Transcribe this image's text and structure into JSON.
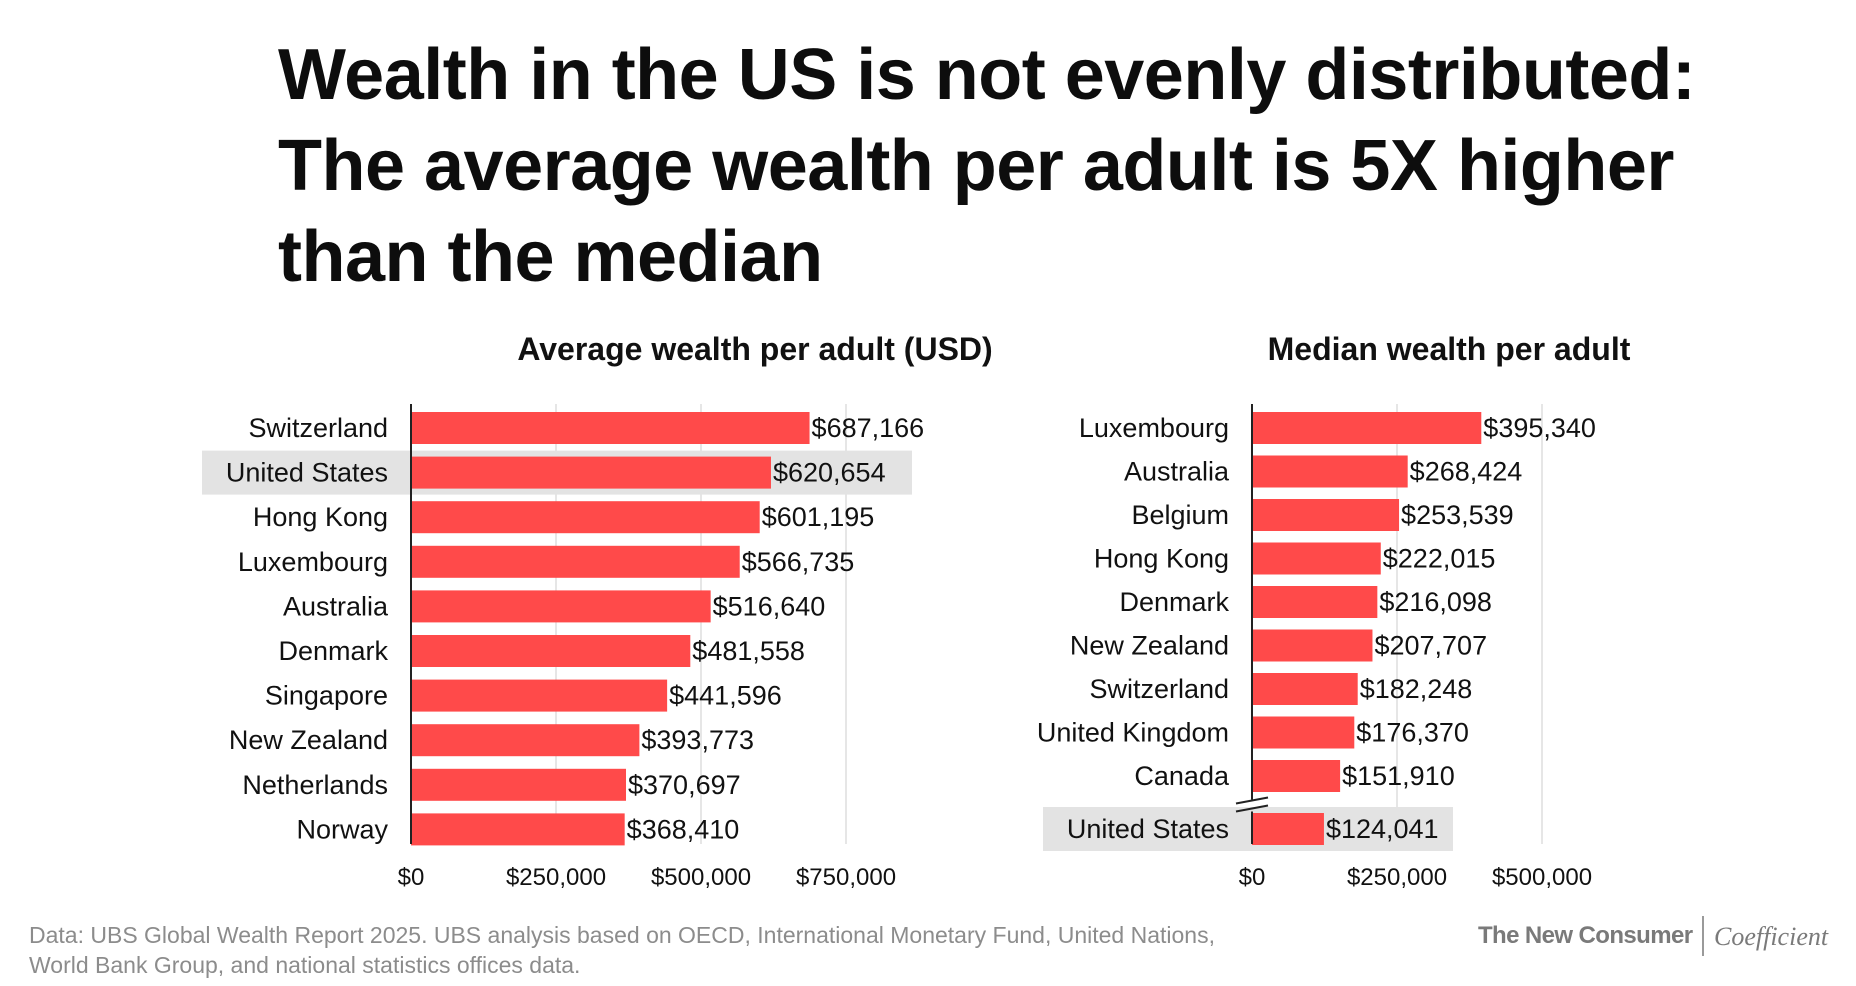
{
  "title": {
    "line1": "Wealth in the US is not evenly distributed:",
    "line2": "The average wealth per adult is 5X higher",
    "line3": "than the median"
  },
  "colors": {
    "bar": "#ff4a4a",
    "highlight": "#e3e3e3",
    "grid": "#dddddd",
    "axis": "#222222",
    "text": "#111111"
  },
  "chart_data": [
    {
      "type": "bar",
      "orientation": "horizontal",
      "title": "Average wealth per adult (USD)",
      "categories": [
        "Switzerland",
        "United States",
        "Hong Kong",
        "Luxembourg",
        "Australia",
        "Denmark",
        "Singapore",
        "New Zealand",
        "Netherlands",
        "Norway"
      ],
      "values": [
        687166,
        620654,
        601195,
        566735,
        516640,
        481558,
        441596,
        393773,
        370697,
        368410
      ],
      "value_labels": [
        "$687,166",
        "$620,654",
        "$601,195",
        "$566,735",
        "$516,640",
        "$481,558",
        "$441,596",
        "$393,773",
        "$370,697",
        "$368,410"
      ],
      "highlight": "United States",
      "xlim": [
        0,
        750000
      ],
      "xticks": [
        0,
        250000,
        500000,
        750000
      ],
      "xtick_labels": [
        "$0",
        "$250,000",
        "$500,000",
        "$750,000"
      ],
      "grid": true
    },
    {
      "type": "bar",
      "orientation": "horizontal",
      "title": "Median wealth per adult",
      "categories": [
        "Luxembourg",
        "Australia",
        "Belgium",
        "Hong Kong",
        "Denmark",
        "New Zealand",
        "Switzerland",
        "United Kingdom",
        "Canada",
        "United States"
      ],
      "values": [
        395340,
        268424,
        253539,
        222015,
        216098,
        207707,
        182248,
        176370,
        151910,
        124041
      ],
      "value_labels": [
        "$395,340",
        "$268,424",
        "$253,539",
        "$222,015",
        "$216,098",
        "$207,707",
        "$182,248",
        "$176,370",
        "$151,910",
        "$124,041"
      ],
      "highlight": "United States",
      "axis_break_before": "United States",
      "xlim": [
        0,
        500000
      ],
      "xticks": [
        0,
        250000,
        500000
      ],
      "xtick_labels": [
        "$0",
        "$250,000",
        "$500,000"
      ],
      "grid": true
    }
  ],
  "footer": {
    "source_line1": "Data: UBS Global Wealth Report 2025. UBS analysis based on OECD, International Monetary Fund, United Nations,",
    "source_line2": "World Bank Group, and national statistics offices data.",
    "brand_left": "The New Consumer",
    "brand_right": "Coefficient"
  }
}
